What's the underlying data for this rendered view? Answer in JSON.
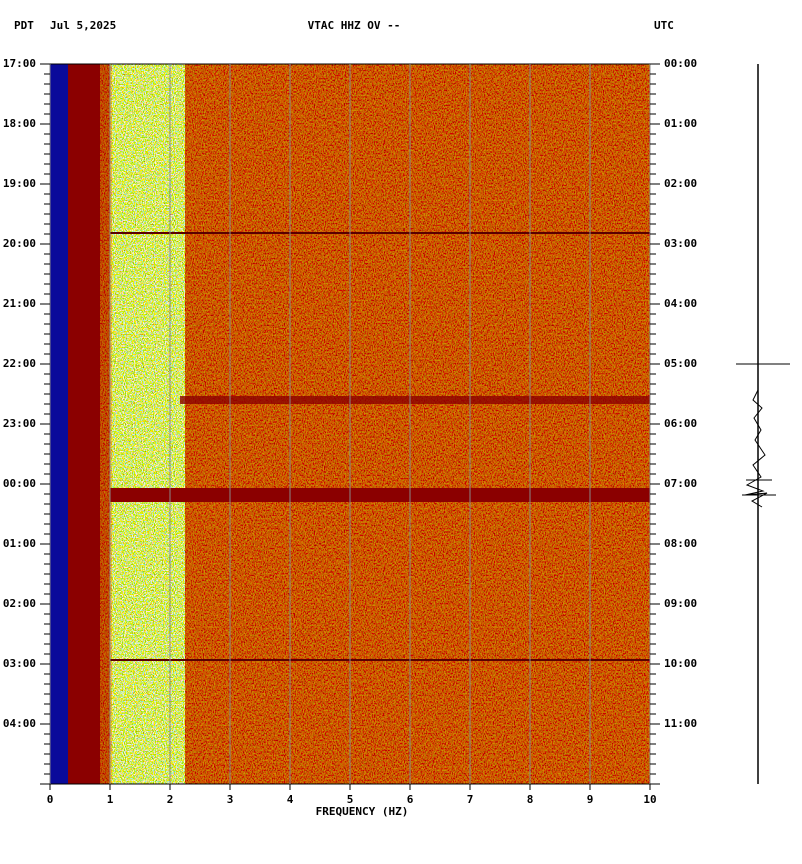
{
  "header": {
    "left_zone": "PDT",
    "date": "Jul 5,2025",
    "station": "VTAC HHZ OV --",
    "right_zone": "UTC"
  },
  "chart_data": {
    "type": "spectrogram",
    "xlabel": "FREQUENCY (HZ)",
    "xlim": [
      0,
      10
    ],
    "xticks": [
      0,
      1,
      2,
      3,
      4,
      5,
      6,
      7,
      8,
      9,
      10
    ],
    "grid": true,
    "y_left_labels": [
      "17:00",
      "18:00",
      "19:00",
      "20:00",
      "21:00",
      "22:00",
      "23:00",
      "00:00",
      "01:00",
      "02:00",
      "03:00",
      "04:00"
    ],
    "y_right_labels": [
      "00:00",
      "01:00",
      "02:00",
      "03:00",
      "04:00",
      "05:00",
      "06:00",
      "07:00",
      "08:00",
      "09:00",
      "10:00",
      "11:00"
    ]
  }
}
